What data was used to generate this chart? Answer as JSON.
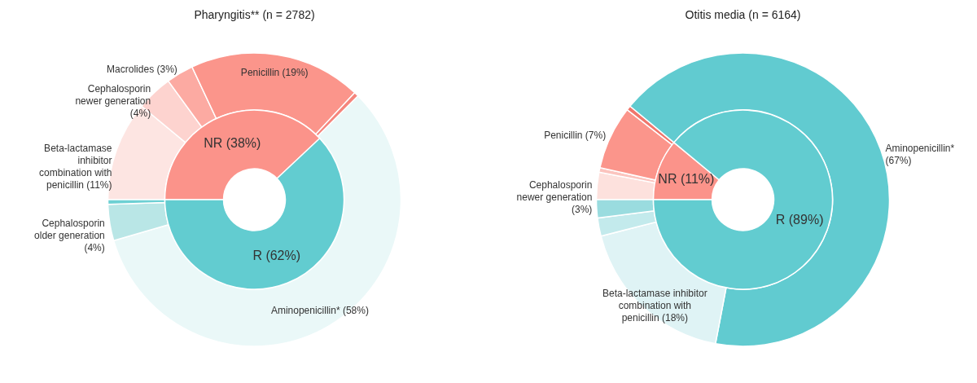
{
  "chart_data": [
    {
      "type": "donut",
      "title": "Pharyngitis** (n = 2782)",
      "categories": [
        "NR (38%)",
        "R (62%)"
      ],
      "values": [
        38,
        62
      ],
      "colors": [
        "#fb938a",
        "#62ccd0"
      ]
    },
    {
      "type": "donut",
      "categories": [
        "Beta-lactamase inhibitor combination with penicillin (11%)",
        "Cephalosporin newer generation (4%)",
        "Macrolides (3%)",
        "Penicillin (19%)",
        null,
        "Aminopenicillin* (58%)",
        "Cephalosporin older generation (4%)",
        null
      ],
      "values": [
        11,
        4,
        3,
        19,
        0.5,
        58,
        4,
        0.5
      ],
      "colors": [
        "#fde5e2",
        "#fdd3cf",
        "#fcaaa2",
        "#fb958b",
        "#f5857c",
        "#eaf8f8",
        "#b9e6e6",
        "#6dd0d3"
      ]
    },
    {
      "type": "donut",
      "title": "Otitis media (n = 6164)",
      "categories": [
        "NR (11%)",
        "R (89%)"
      ],
      "values": [
        11,
        89
      ],
      "colors": [
        "#fb938a",
        "#62ccd0"
      ]
    },
    {
      "type": "donut",
      "categories": [
        "Cephalosporin newer generation (3%)",
        null,
        "Penicillin (7%)",
        null,
        "Aminopenicillin* (67%)",
        "Beta-lactamase inhibitor combination with penicillin (18%)",
        null,
        null
      ],
      "values": [
        3,
        0.5,
        7,
        0.5,
        67,
        18,
        2,
        2
      ],
      "colors": [
        "#fde1dd",
        "#fbc4be",
        "#fb958b",
        "#f0766c",
        "#61cbd0",
        "#dff3f5",
        "#c3eaec",
        "#9adcdf"
      ]
    }
  ]
}
